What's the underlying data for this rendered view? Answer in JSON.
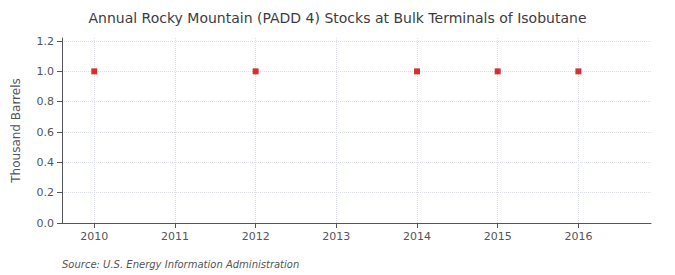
{
  "chart_data": {
    "type": "scatter",
    "title": "Annual Rocky Mountain (PADD 4) Stocks at Bulk Terminals of Isobutane",
    "ylabel": "Thousand Barrels",
    "source": "Source: U.S. Energy Information Administration",
    "x": [
      2010,
      2012,
      2014,
      2015,
      2016
    ],
    "values": [
      1.0,
      1.0,
      1.0,
      1.0,
      1.0
    ],
    "color": "#cc0000",
    "marker": "square",
    "xlim": [
      2009.6,
      2016.9
    ],
    "ylim": [
      0.0,
      1.22
    ],
    "xticks": [
      2010,
      2011,
      2012,
      2013,
      2014,
      2015,
      2016
    ],
    "yticks": [
      {
        "value": 0.0,
        "label": "0.0"
      },
      {
        "value": 0.2,
        "label": "0.2"
      },
      {
        "value": 0.4,
        "label": "0.4"
      },
      {
        "value": 0.6,
        "label": "0.6"
      },
      {
        "value": 0.8,
        "label": "0.8"
      },
      {
        "value": 1.0,
        "label": "1.0"
      },
      {
        "value": 1.2,
        "label": "1.2"
      }
    ],
    "grid": true
  }
}
